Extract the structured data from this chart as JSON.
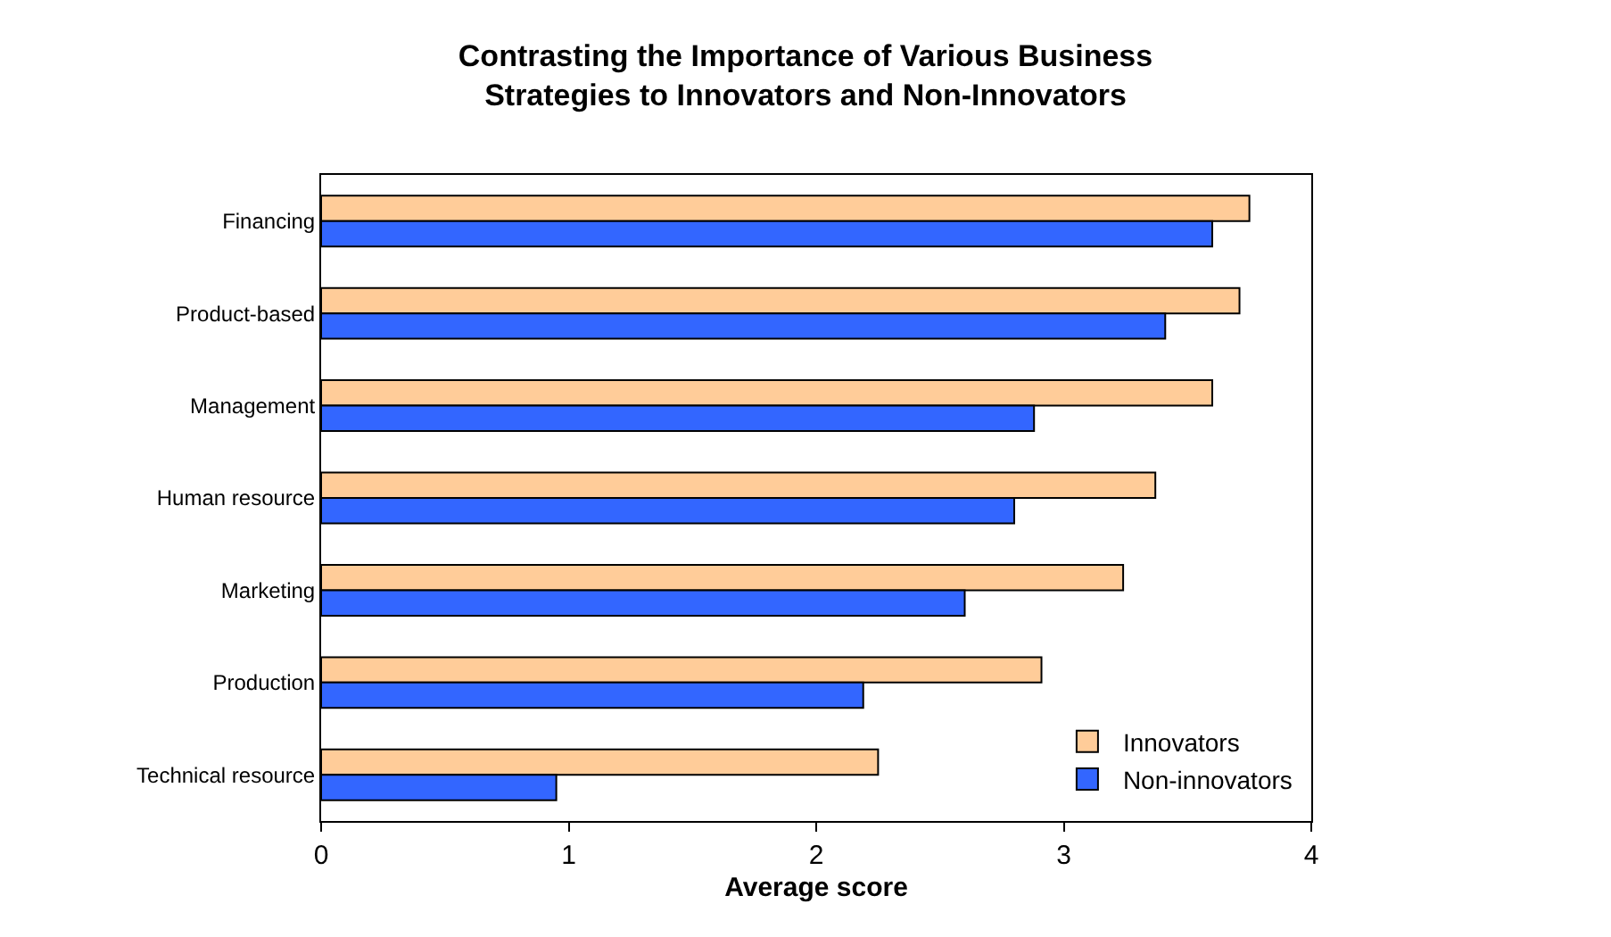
{
  "chart_data": {
    "type": "bar",
    "orientation": "horizontal",
    "title": "Contrasting the Importance of Various Business\nStrategies to Innovators and Non-Innovators",
    "xlabel": "Average score",
    "categories": [
      "Financing",
      "Product-based",
      "Management",
      "Human resource",
      "Marketing",
      "Production",
      "Technical resource"
    ],
    "series": [
      {
        "name": "Innovators",
        "color": "#ffcc99",
        "values": [
          3.75,
          3.71,
          3.6,
          3.37,
          3.24,
          2.91,
          2.25
        ]
      },
      {
        "name": "Non-innovators",
        "color": "#3366ff",
        "values": [
          3.6,
          3.41,
          2.88,
          2.8,
          2.6,
          2.19,
          0.95
        ]
      }
    ],
    "xlim": [
      0,
      4
    ],
    "xticks": [
      0,
      1,
      2,
      3,
      4
    ],
    "grid": false,
    "legend": "bottom right"
  }
}
